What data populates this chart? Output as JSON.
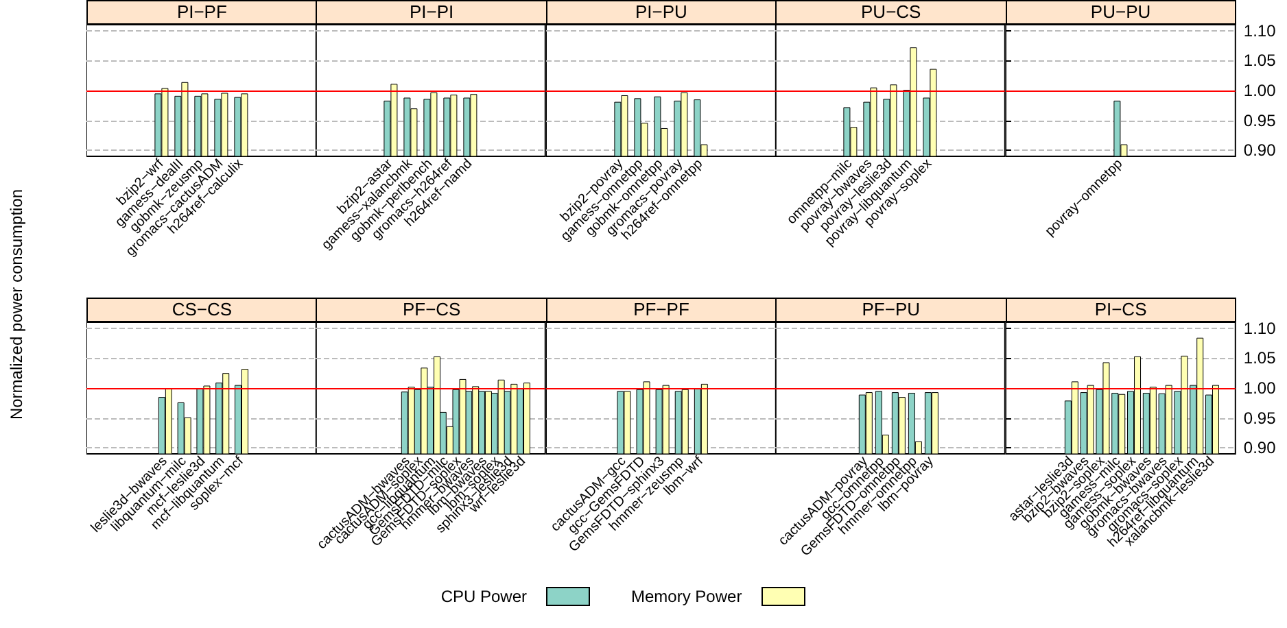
{
  "chart_data": [
    {
      "type": "bar",
      "title": "PI−PF",
      "ylabel": "Normalized power consumption",
      "legend": "bottom",
      "categories": [
        "bzip2−wrf",
        "gamess−dealII",
        "gobmk−zeusmp",
        "gromacs−cactusADM",
        "h264ref−calculix"
      ],
      "series": [
        {
          "name": "CPU Power",
          "color": "#8dd3c7",
          "values": [
            0.995,
            0.991,
            0.991,
            0.986,
            0.989
          ]
        },
        {
          "name": "Memory Power",
          "color": "#ffffb3",
          "values": [
            1.004,
            1.014,
            0.995,
            0.996,
            0.995
          ]
        }
      ],
      "ylim": [
        0.89,
        1.11
      ],
      "yticks": [
        {
          "value": 0.9,
          "label": null
        },
        {
          "value": 0.95,
          "label": null
        },
        {
          "value": 1.0,
          "label": null
        },
        {
          "value": 1.05,
          "label": null
        },
        {
          "value": 1.1,
          "label": null
        }
      ],
      "grid": "y",
      "tick_labels": "x",
      "ref_lines": [
        {
          "axis": "y",
          "value": 1.0,
          "color": "#ff0000"
        }
      ]
    },
    {
      "type": "bar",
      "title": "PI−PI",
      "categories": [
        "bzip2−astar",
        "gamess−xalancbmk",
        "gobmk−perlbench",
        "gromacs−h264ref",
        "h264ref−namd"
      ],
      "series": [
        {
          "color": "#8dd3c7",
          "values": [
            0.983,
            0.988,
            0.986,
            0.988,
            0.988
          ]
        },
        {
          "color": "#ffffb3",
          "values": [
            1.011,
            0.97,
            0.997,
            0.993,
            0.994
          ]
        }
      ],
      "ylim": [
        0.89,
        1.11
      ],
      "yticks": [
        {
          "value": 0.9,
          "label": null
        },
        {
          "value": 0.95,
          "label": null
        },
        {
          "value": 1.0,
          "label": null
        },
        {
          "value": 1.05,
          "label": null
        },
        {
          "value": 1.1,
          "label": null
        }
      ],
      "grid": "y",
      "tick_labels": "x",
      "ref_lines": [
        {
          "axis": "y",
          "value": 1.0,
          "color": "#ff0000"
        }
      ]
    },
    {
      "type": "bar",
      "title": "PI−PU",
      "categories": [
        "bzip2−povray",
        "gamess−omnetpp",
        "gobmk−omnetpp",
        "gromacs−povray",
        "h264ref−omnetpp"
      ],
      "series": [
        {
          "color": "#8dd3c7",
          "values": [
            0.981,
            0.987,
            0.99,
            0.983,
            0.985
          ]
        },
        {
          "color": "#ffffb3",
          "values": [
            0.992,
            0.946,
            0.937,
            0.997,
            0.91
          ]
        }
      ],
      "ylim": [
        0.89,
        1.11
      ],
      "yticks": [
        {
          "value": 0.9,
          "label": null
        },
        {
          "value": 0.95,
          "label": null
        },
        {
          "value": 1.0,
          "label": null
        },
        {
          "value": 1.05,
          "label": null
        },
        {
          "value": 1.1,
          "label": null
        }
      ],
      "grid": "y",
      "tick_labels": "x",
      "ref_lines": [
        {
          "axis": "y",
          "value": 1.0,
          "color": "#ff0000"
        }
      ]
    },
    {
      "type": "bar",
      "title": "PU−CS",
      "categories": [
        "omnetpp−milc",
        "povray−bwaves",
        "povray−leslie3d",
        "povray−libquantum",
        "povray−soplex"
      ],
      "series": [
        {
          "color": "#8dd3c7",
          "values": [
            0.972,
            0.981,
            0.986,
            1.001,
            0.988
          ]
        },
        {
          "color": "#ffffb3",
          "values": [
            0.939,
            1.005,
            1.01,
            1.072,
            1.036
          ]
        }
      ],
      "ylim": [
        0.89,
        1.11
      ],
      "yticks": [
        {
          "value": 0.9,
          "label": null
        },
        {
          "value": 0.95,
          "label": null
        },
        {
          "value": 1.0,
          "label": null
        },
        {
          "value": 1.05,
          "label": null
        },
        {
          "value": 1.1,
          "label": null
        }
      ],
      "grid": "y",
      "tick_labels": "x",
      "ref_lines": [
        {
          "axis": "y",
          "value": 1.0,
          "color": "#ff0000"
        }
      ]
    },
    {
      "type": "bar",
      "title": "PU−PU",
      "categories": [
        "povray−omnetpp"
      ],
      "series": [
        {
          "color": "#8dd3c7",
          "values": [
            0.983
          ]
        },
        {
          "color": "#ffffb3",
          "values": [
            0.91
          ]
        }
      ],
      "ylim": [
        0.89,
        1.11
      ],
      "yticks": [
        {
          "value": 0.9,
          "label": "0.90"
        },
        {
          "value": 0.95,
          "label": "0.95"
        },
        {
          "value": 1.0,
          "label": "1.00"
        },
        {
          "value": 1.05,
          "label": "1.05"
        },
        {
          "value": 1.1,
          "label": "1.10"
        }
      ],
      "grid": "y",
      "ref_lines": [
        {
          "axis": "y",
          "value": 1.0,
          "color": "#ff0000"
        }
      ]
    },
    {
      "type": "bar",
      "title": "CS−CS",
      "categories": [
        "leslie3d−bwaves",
        "libquantum−milc",
        "mcf−leslie3d",
        "mcf−libquantum",
        "soplex−mcf"
      ],
      "series": [
        {
          "color": "#8dd3c7",
          "values": [
            0.985,
            0.976,
            1.0,
            1.009,
            1.005
          ]
        },
        {
          "color": "#ffffb3",
          "values": [
            0.999,
            0.951,
            1.004,
            1.025,
            1.032
          ]
        }
      ],
      "ylim": [
        0.89,
        1.11
      ],
      "yticks": [
        {
          "value": 0.9,
          "label": null
        },
        {
          "value": 0.95,
          "label": null
        },
        {
          "value": 1.0,
          "label": null
        },
        {
          "value": 1.05,
          "label": null
        },
        {
          "value": 1.1,
          "label": null
        }
      ],
      "grid": "y",
      "tick_labels": "x",
      "ref_lines": [
        {
          "axis": "y",
          "value": 1.0,
          "color": "#ff0000"
        }
      ]
    },
    {
      "type": "bar",
      "title": "PF−CS",
      "categories": [
        "cactusADM−bwaves",
        "cactusADM−soplex",
        "gcc−libquantum",
        "GemsFDTD−milc",
        "GemsFDTD−soplex",
        "hmmer−bwaves",
        "lbm−bwaves",
        "lbm−soplex",
        "sphinx3−leslie3d",
        "wrf−leslie3d"
      ],
      "series": [
        {
          "color": "#8dd3c7",
          "values": [
            0.994,
            0.998,
            1.002,
            0.96,
            0.998,
            0.995,
            0.995,
            0.992,
            0.995,
            0.999
          ]
        },
        {
          "color": "#ffffb3",
          "values": [
            1.002,
            1.034,
            1.053,
            0.936,
            1.015,
            1.003,
            0.995,
            1.014,
            1.007,
            1.009
          ]
        }
      ],
      "ylim": [
        0.89,
        1.11
      ],
      "yticks": [
        {
          "value": 0.9,
          "label": null
        },
        {
          "value": 0.95,
          "label": null
        },
        {
          "value": 1.0,
          "label": null
        },
        {
          "value": 1.05,
          "label": null
        },
        {
          "value": 1.1,
          "label": null
        }
      ],
      "grid": "y",
      "tick_labels": "x",
      "ref_lines": [
        {
          "axis": "y",
          "value": 1.0,
          "color": "#ff0000"
        }
      ]
    },
    {
      "type": "bar",
      "title": "PF−PF",
      "categories": [
        "cactusADM−gcc",
        "gcc−GemsFDTD",
        "GemsFDTD−sphinx3",
        "hmmer−zeusmp",
        "lbm−wrf"
      ],
      "series": [
        {
          "color": "#8dd3c7",
          "values": [
            0.995,
            0.998,
            0.998,
            0.995,
            1.0
          ]
        },
        {
          "color": "#ffffb3",
          "values": [
            0.995,
            1.011,
            1.005,
            0.998,
            1.007
          ]
        }
      ],
      "ylim": [
        0.89,
        1.11
      ],
      "yticks": [
        {
          "value": 0.9,
          "label": null
        },
        {
          "value": 0.95,
          "label": null
        },
        {
          "value": 1.0,
          "label": null
        },
        {
          "value": 1.05,
          "label": null
        },
        {
          "value": 1.1,
          "label": null
        }
      ],
      "grid": "y",
      "tick_labels": "x",
      "ref_lines": [
        {
          "axis": "y",
          "value": 1.0,
          "color": "#ff0000"
        }
      ]
    },
    {
      "type": "bar",
      "title": "PF−PU",
      "categories": [
        "cactusADM−povray",
        "gcc−omnetpp",
        "GemsFDTD−omnetpp",
        "hmmer−omnetpp",
        "lbm−povray"
      ],
      "series": [
        {
          "color": "#8dd3c7",
          "values": [
            0.989,
            0.995,
            0.993,
            0.992,
            0.993
          ]
        },
        {
          "color": "#ffffb3",
          "values": [
            0.993,
            0.922,
            0.985,
            0.911,
            0.993
          ]
        }
      ],
      "ylim": [
        0.89,
        1.11
      ],
      "yticks": [
        {
          "value": 0.9,
          "label": null
        },
        {
          "value": 0.95,
          "label": null
        },
        {
          "value": 1.0,
          "label": null
        },
        {
          "value": 1.05,
          "label": null
        },
        {
          "value": 1.1,
          "label": null
        }
      ],
      "grid": "y",
      "tick_labels": "x",
      "ref_lines": [
        {
          "axis": "y",
          "value": 1.0,
          "color": "#ff0000"
        }
      ]
    },
    {
      "type": "bar",
      "title": "PI−CS",
      "categories": [
        "astar−leslie3d",
        "bzip2−bwaves",
        "bzip2−soplex",
        "gamess−milc",
        "gamess−soplex",
        "gobmk−bwaves",
        "gromacs−bwaves",
        "gromacs−soplex",
        "h264ref−libquantum",
        "xalancbmk−leslie3d"
      ],
      "series": [
        {
          "color": "#8dd3c7",
          "values": [
            0.979,
            0.993,
            0.998,
            0.992,
            0.995,
            0.992,
            0.991,
            0.995,
            1.005,
            0.989
          ]
        },
        {
          "color": "#ffffb3",
          "values": [
            1.011,
            1.005,
            1.043,
            0.99,
            1.053,
            1.002,
            1.005,
            1.054,
            1.084,
            1.005
          ]
        }
      ],
      "ylim": [
        0.89,
        1.11
      ],
      "yticks": [
        {
          "value": 0.9,
          "label": "0.90"
        },
        {
          "value": 0.95,
          "label": "0.95"
        },
        {
          "value": 1.0,
          "label": "1.00"
        },
        {
          "value": 1.05,
          "label": "1.05"
        },
        {
          "value": 1.1,
          "label": "1.10"
        }
      ],
      "grid": "y",
      "ref_lines": [
        {
          "axis": "y",
          "value": 1.0,
          "color": "#ff0000"
        }
      ]
    }
  ]
}
